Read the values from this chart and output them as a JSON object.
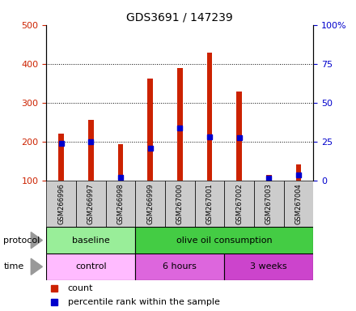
{
  "title": "GDS3691 / 147239",
  "samples": [
    "GSM266996",
    "GSM266997",
    "GSM266998",
    "GSM266999",
    "GSM267000",
    "GSM267001",
    "GSM267002",
    "GSM267003",
    "GSM267004"
  ],
  "bar_tops": [
    220,
    255,
    193,
    362,
    390,
    428,
    328,
    113,
    142
  ],
  "bar_base": 100,
  "blue_positions": [
    195,
    200,
    108,
    182,
    235,
    212,
    210,
    105,
    115
  ],
  "left_ylim": [
    100,
    500
  ],
  "right_ylim": [
    0,
    100
  ],
  "left_yticks": [
    100,
    200,
    300,
    400,
    500
  ],
  "right_yticks": [
    0,
    25,
    50,
    75,
    100
  ],
  "right_yticklabels": [
    "0",
    "25",
    "50",
    "75",
    "100%"
  ],
  "bar_color": "#cc2200",
  "blue_color": "#0000cc",
  "protocol_groups": [
    {
      "label": "baseline",
      "start": 0,
      "end": 3,
      "color": "#99ee99"
    },
    {
      "label": "olive oil consumption",
      "start": 3,
      "end": 9,
      "color": "#44cc44"
    }
  ],
  "time_groups": [
    {
      "label": "control",
      "start": 0,
      "end": 3,
      "color": "#ffbbff"
    },
    {
      "label": "6 hours",
      "start": 3,
      "end": 6,
      "color": "#dd66dd"
    },
    {
      "label": "3 weeks",
      "start": 6,
      "end": 9,
      "color": "#cc44cc"
    }
  ],
  "legend_count_color": "#cc2200",
  "legend_pct_color": "#0000cc",
  "sample_bg_color": "#cccccc",
  "arrow_color": "#999999"
}
